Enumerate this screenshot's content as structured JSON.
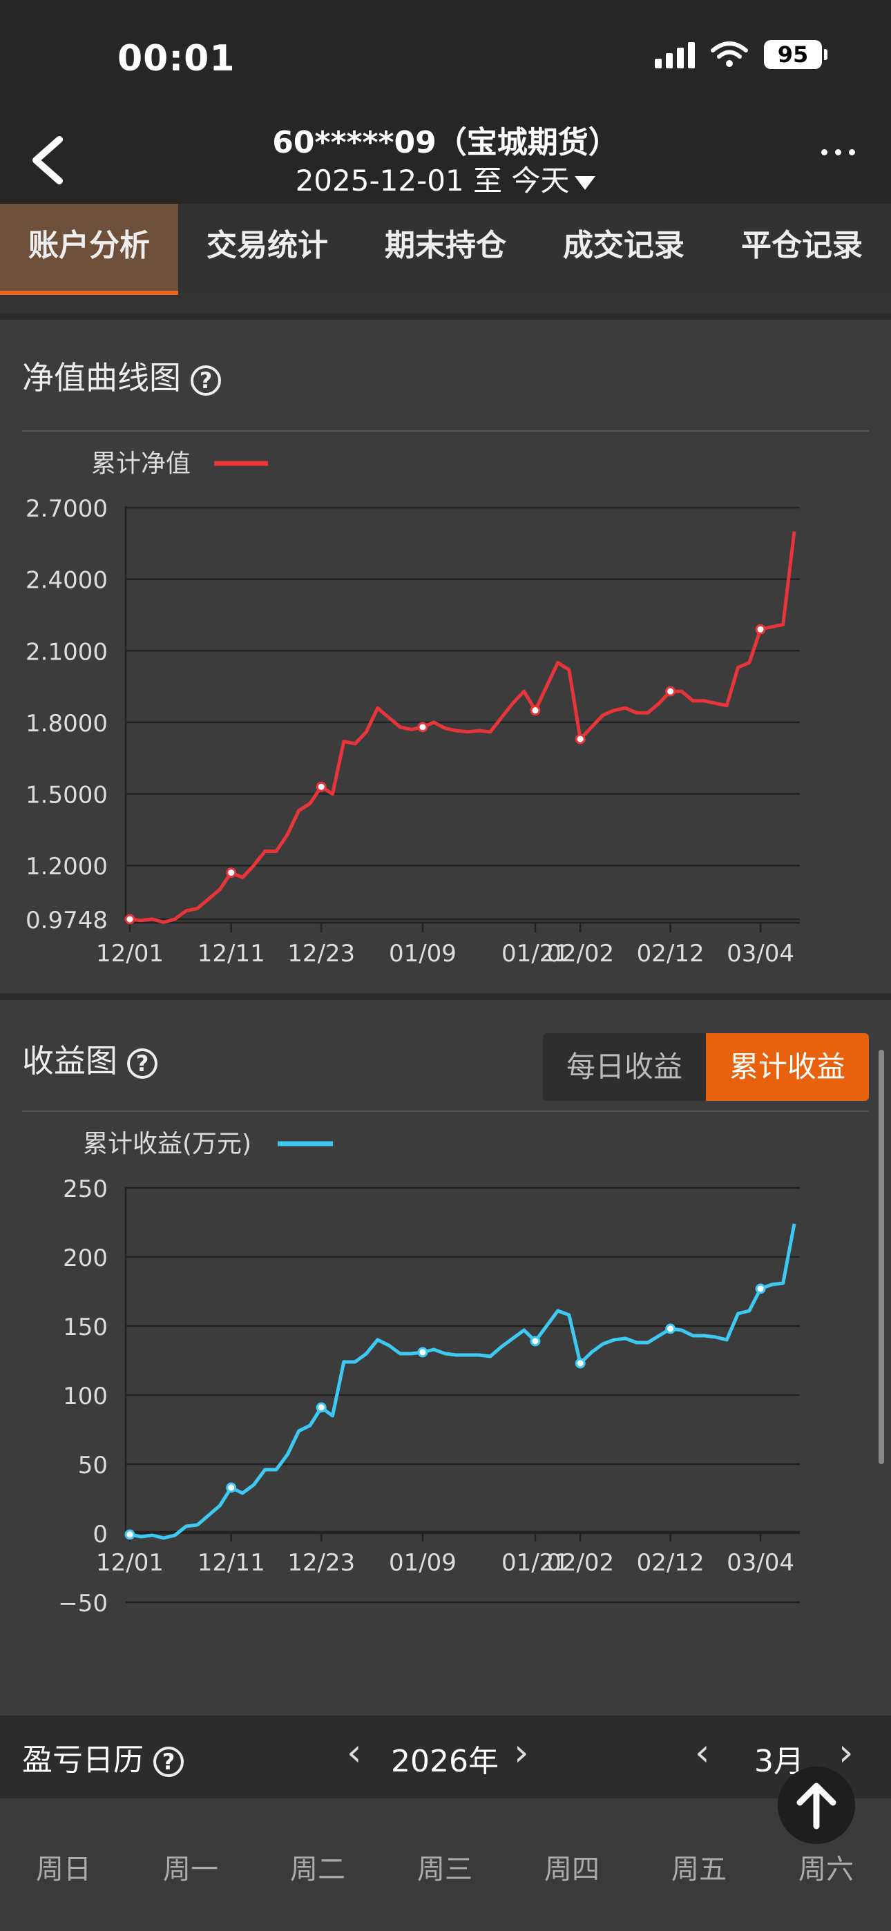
{
  "status": {
    "time": "00:01",
    "battery": "95"
  },
  "nav": {
    "title": "60*****09（宝城期货）",
    "date_from": "2025-12-01",
    "date_sep": "至",
    "date_to": "今天"
  },
  "tabs": [
    "账户分析",
    "交易统计",
    "期末持仓",
    "成交记录",
    "平仓记录"
  ],
  "nav_chart": {
    "title": "净值曲线图",
    "help": "?",
    "legend": "累计净值"
  },
  "profit_chart": {
    "title": "收益图",
    "help": "?",
    "legend": "累计收益(万元)",
    "toggle_daily": "每日收益",
    "toggle_cum": "累计收益"
  },
  "calendar": {
    "title": "盈亏日历",
    "help": "?",
    "year": "2026年",
    "month": "3月",
    "weekdays": [
      "周日",
      "周一",
      "周二",
      "周三",
      "周四",
      "周五",
      "周六"
    ]
  },
  "colors": {
    "accent": "#e8620e",
    "nav_line": "#e8353a",
    "profit_line": "#3ec9f2",
    "active_tab": "#6e4f3a"
  },
  "chart_data": [
    {
      "type": "line",
      "title": "净值曲线图",
      "x_tick_labels": [
        "12/01",
        "12/11",
        "12/23",
        "01/09",
        "01/21",
        "02/02",
        "02/12",
        "03/04"
      ],
      "y_tick_labels": [
        "2.7000",
        "2.4000",
        "2.1000",
        "1.8000",
        "1.5000",
        "1.2000",
        "0.9748"
      ],
      "ylim": [
        0.9748,
        2.7
      ],
      "series": [
        {
          "name": "累计净值",
          "values": [
            0.9748,
            0.97,
            0.975,
            0.962,
            0.975,
            1.01,
            1.02,
            1.06,
            1.1,
            1.17,
            1.15,
            1.2,
            1.26,
            1.26,
            1.33,
            1.43,
            1.46,
            1.53,
            1.5,
            1.72,
            1.71,
            1.76,
            1.86,
            1.82,
            1.78,
            1.77,
            1.78,
            1.8,
            1.775,
            1.765,
            1.76,
            1.765,
            1.76,
            1.82,
            1.88,
            1.93,
            1.85,
            1.95,
            2.05,
            2.02,
            1.73,
            1.78,
            1.83,
            1.85,
            1.86,
            1.84,
            1.84,
            1.88,
            1.93,
            1.93,
            1.89,
            1.89,
            1.88,
            1.87,
            2.03,
            2.05,
            2.19,
            2.2,
            2.21,
            2.6
          ]
        }
      ],
      "markers_at_index": [
        0,
        9,
        17,
        26,
        36,
        40,
        48,
        56
      ]
    },
    {
      "type": "line",
      "title": "收益图",
      "x_tick_labels": [
        "12/01",
        "12/11",
        "12/23",
        "01/09",
        "01/21",
        "02/02",
        "02/12",
        "03/04"
      ],
      "y_tick_labels": [
        "250",
        "200",
        "150",
        "100",
        "50",
        "0",
        "−50"
      ],
      "ylim": [
        -50,
        250
      ],
      "series": [
        {
          "name": "累计收益(万元)",
          "values": [
            -1,
            -2.5,
            -1.5,
            -3.5,
            -1.5,
            5,
            6,
            13,
            20,
            33,
            29,
            35,
            46,
            46,
            57,
            74,
            78,
            91,
            85,
            124,
            124,
            130,
            140,
            136,
            130,
            130,
            131,
            133,
            130,
            129,
            129,
            129,
            128,
            135,
            141,
            147,
            139,
            150,
            161,
            158,
            123,
            131,
            137,
            140,
            141,
            138,
            138,
            143,
            148,
            147,
            143,
            143,
            142,
            140,
            159,
            161,
            177,
            180,
            181,
            224
          ]
        }
      ],
      "markers_at_index": [
        0,
        9,
        17,
        26,
        36,
        40,
        48,
        56
      ]
    }
  ]
}
